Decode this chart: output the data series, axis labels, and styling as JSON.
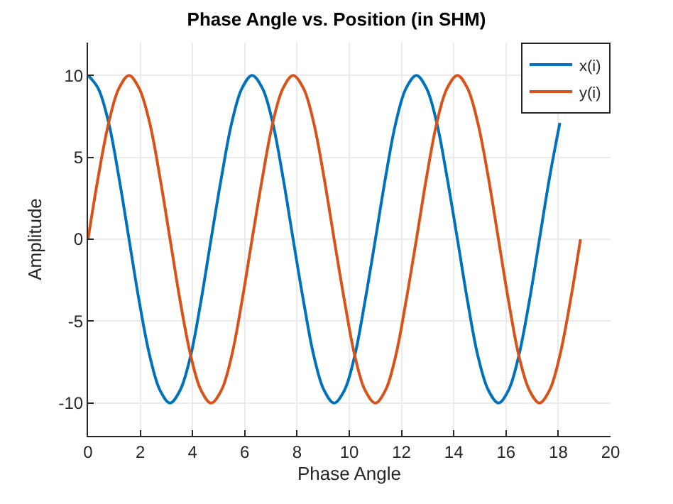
{
  "chart_data": {
    "type": "line",
    "title": "Phase Angle vs. Position (in SHM)",
    "xlabel": "Phase Angle",
    "ylabel": "Amplitude",
    "x": [
      0,
      0.39,
      0.79,
      1.18,
      1.57,
      1.96,
      2.36,
      2.75,
      3.14,
      3.53,
      3.93,
      4.32,
      4.71,
      5.11,
      5.5,
      5.89,
      6.28,
      6.68,
      7.07,
      7.46,
      7.85,
      8.25,
      8.64,
      9.03,
      9.42,
      9.82,
      10.21,
      10.6,
      11.0,
      11.39,
      11.78,
      12.17,
      12.57,
      12.96,
      13.35,
      13.74,
      14.14,
      14.53,
      14.92,
      15.32,
      15.71,
      16.1,
      16.49,
      16.89,
      17.28,
      17.67,
      18.06,
      18.46,
      18.85
    ],
    "series": [
      {
        "name": "x(i)",
        "color": "#0072bd",
        "values": [
          10,
          9.2,
          7.1,
          3.8,
          0,
          -3.8,
          -7.1,
          -9.2,
          -10,
          -9.2,
          -7.1,
          -3.8,
          0,
          3.8,
          7.1,
          9.2,
          10,
          9.2,
          7.1,
          3.8,
          0,
          -3.8,
          -7.1,
          -9.2,
          -10,
          -9.2,
          -7.1,
          -3.8,
          0,
          3.8,
          7.1,
          9.2,
          10,
          9.2,
          7.1,
          3.8,
          0,
          -3.8,
          -7.1,
          -9.2,
          -10,
          -9.2,
          -7.1,
          -3.8,
          0,
          3.8,
          7.1,
          null,
          null
        ]
      },
      {
        "name": "y(i)",
        "color": "#d95319",
        "values": [
          0,
          3.8,
          7.1,
          9.2,
          10,
          9.2,
          7.1,
          3.8,
          0,
          -3.8,
          -7.1,
          -9.2,
          -10,
          -9.2,
          -7.1,
          -3.8,
          0,
          3.8,
          7.1,
          9.2,
          10,
          9.2,
          7.1,
          3.8,
          0,
          -3.8,
          -7.1,
          -9.2,
          -10,
          -9.2,
          -7.1,
          -3.8,
          0,
          3.8,
          7.1,
          9.2,
          10,
          9.2,
          7.1,
          3.8,
          0,
          -3.8,
          -7.1,
          -9.2,
          -10,
          -9.2,
          -7.1,
          -3.8,
          0
        ]
      }
    ],
    "xlim": [
      0,
      20
    ],
    "xticks": [
      0,
      2,
      4,
      6,
      8,
      10,
      12,
      14,
      16,
      18,
      20
    ],
    "ylim": [
      -12,
      12
    ],
    "yticks": [
      -10,
      -5,
      0,
      5,
      10
    ],
    "grid": true,
    "legend": "top right",
    "marker": "none",
    "line_style": "solid"
  }
}
